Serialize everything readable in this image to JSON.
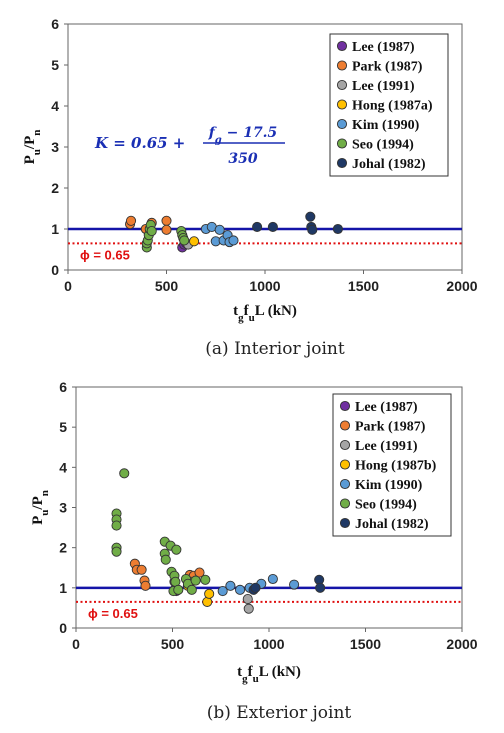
{
  "chart_data": [
    {
      "type": "scatter",
      "caption": "(a) Interior joint",
      "xlabel": "t_g f_u L (kN)",
      "ylabel": "P_u/P_n",
      "xlim": [
        0,
        2000
      ],
      "ylim": [
        0,
        6
      ],
      "xticks": [
        "0",
        "500",
        "1000",
        "1500",
        "2000"
      ],
      "yticks": [
        "0",
        "1",
        "2",
        "3",
        "4",
        "5",
        "6"
      ],
      "legend_position": "top-right",
      "reference_line": {
        "y": 1.0,
        "color": "#1414a8"
      },
      "phi_line": {
        "y": 0.65,
        "label": "ϕ = 0.65",
        "color": "#e01010"
      },
      "formula": {
        "text": "K = 0.65 + (f_g − 17.5) / 350",
        "lhs": "K = 0.65 +",
        "numerator": "f_g − 17.5",
        "denominator": "350"
      },
      "series": [
        {
          "name": "Lee (1987)",
          "color": "#7030a0",
          "x": [
            580,
            590,
            600
          ],
          "y": [
            0.55,
            0.62,
            0.65
          ]
        },
        {
          "name": "Park (1987)",
          "color": "#ed7d31",
          "x": [
            315,
            320,
            395,
            425,
            500,
            500
          ],
          "y": [
            1.12,
            1.2,
            1.0,
            1.15,
            1.2,
            0.98
          ]
        },
        {
          "name": "Lee (1991)",
          "color": "#a5a5a5",
          "x": [
            610
          ],
          "y": [
            0.62
          ]
        },
        {
          "name": "Hong (1987a)",
          "color": "#ffc000",
          "x": [
            640
          ],
          "y": [
            0.7
          ]
        },
        {
          "name": "Kim (1990)",
          "color": "#5b9bd5",
          "x": [
            700,
            730,
            750,
            770,
            790,
            810,
            820,
            840
          ],
          "y": [
            1.0,
            1.05,
            0.7,
            0.98,
            0.72,
            0.85,
            0.68,
            0.72
          ]
        },
        {
          "name": "Seo (1994)",
          "color": "#70ad47",
          "x": [
            400,
            400,
            405,
            410,
            415,
            420,
            425,
            575,
            580,
            585,
            590
          ],
          "y": [
            0.55,
            0.65,
            0.72,
            0.85,
            1.0,
            1.1,
            0.95,
            0.95,
            0.85,
            0.78,
            0.72
          ]
        },
        {
          "name": "Johal (1982)",
          "color": "#1f3864",
          "x": [
            960,
            1040,
            1230,
            1235,
            1240,
            1370
          ],
          "y": [
            1.05,
            1.05,
            1.3,
            1.05,
            0.98,
            1.0
          ]
        }
      ]
    },
    {
      "type": "scatter",
      "caption": "(b) Exterior joint",
      "xlabel": "t_g f_u L (kN)",
      "ylabel": "P_u/P_n",
      "xlim": [
        0,
        2000
      ],
      "ylim": [
        0,
        6
      ],
      "xticks": [
        "0",
        "500",
        "1000",
        "1500",
        "2000"
      ],
      "yticks": [
        "0",
        "1",
        "2",
        "3",
        "4",
        "5",
        "6"
      ],
      "legend_position": "top-right",
      "reference_line": {
        "y": 1.0,
        "color": "#1414a8"
      },
      "phi_line": {
        "y": 0.65,
        "label": "ϕ = 0.65",
        "color": "#e01010"
      },
      "series": [
        {
          "name": "Lee (1987)",
          "color": "#7030a0",
          "x": [
            510,
            515,
            520
          ],
          "y": [
            1.15,
            0.98,
            0.92
          ]
        },
        {
          "name": "Park (1987)",
          "color": "#ed7d31",
          "x": [
            305,
            315,
            340,
            355,
            360,
            590,
            610,
            640
          ],
          "y": [
            1.6,
            1.45,
            1.45,
            1.18,
            1.05,
            1.32,
            1.3,
            1.38
          ]
        },
        {
          "name": "Lee (1991)",
          "color": "#a5a5a5",
          "x": [
            890,
            895
          ],
          "y": [
            0.72,
            0.48
          ]
        },
        {
          "name": "Hong (1987b)",
          "color": "#ffc000",
          "x": [
            580,
            595,
            680,
            690
          ],
          "y": [
            1.05,
            1.15,
            0.65,
            0.85
          ]
        },
        {
          "name": "Kim (1990)",
          "color": "#5b9bd5",
          "x": [
            760,
            800,
            850,
            900,
            960,
            1020,
            1130
          ],
          "y": [
            0.92,
            1.05,
            0.95,
            1.0,
            1.1,
            1.22,
            1.08
          ]
        },
        {
          "name": "Seo (1994)",
          "color": "#70ad47",
          "x": [
            210,
            210,
            210,
            210,
            210,
            250,
            460,
            460,
            465,
            490,
            495,
            505,
            510,
            515,
            520,
            530,
            570,
            580,
            600,
            620,
            670
          ],
          "y": [
            2.85,
            2.7,
            2.55,
            2.0,
            1.9,
            3.85,
            2.15,
            1.85,
            1.7,
            2.05,
            1.4,
            0.92,
            1.3,
            1.15,
            1.95,
            0.95,
            1.22,
            1.1,
            0.95,
            1.18,
            1.2
          ]
        },
        {
          "name": "Johal (1982)",
          "color": "#1f3864",
          "x": [
            920,
            930,
            1260,
            1265
          ],
          "y": [
            0.95,
            1.0,
            1.2,
            1.0
          ]
        }
      ]
    }
  ]
}
